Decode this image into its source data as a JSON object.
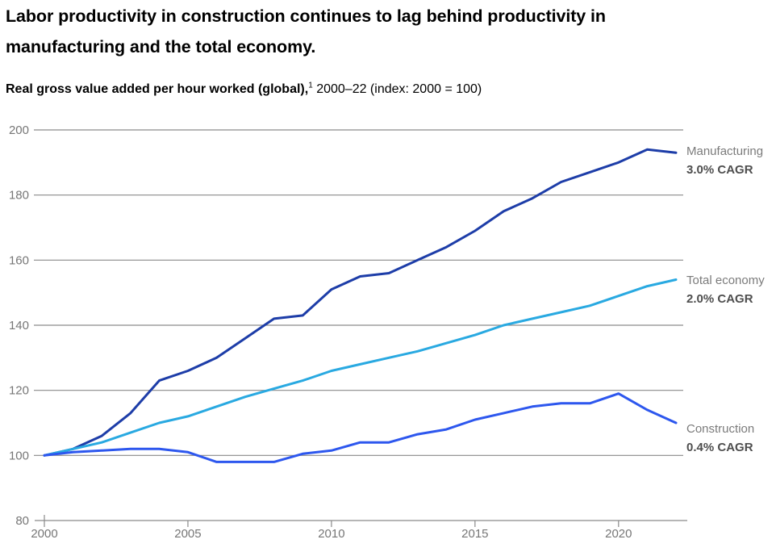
{
  "header": {
    "title_line1": "Labor productivity in construction continues to lag behind productivity in",
    "title_line2": "manufacturing and the total economy.",
    "subtitle_bold": "Real gross value added per hour worked (global),",
    "subtitle_superscript": "1",
    "subtitle_rest": " 2000–22 (index: 2000 = 100)"
  },
  "chart_data": {
    "type": "line",
    "title": "Labor productivity in construction continues to lag behind productivity in manufacturing and the total economy.",
    "subtitle": "Real gross value added per hour worked (global), 2000–22 (index: 2000 = 100)",
    "xlabel": "",
    "ylabel": "",
    "x_range": [
      2000,
      2022
    ],
    "y_range": [
      80,
      200
    ],
    "x_ticks": [
      2000,
      2005,
      2010,
      2015,
      2020
    ],
    "y_ticks": [
      200,
      180,
      160,
      140,
      120,
      100,
      80
    ],
    "y_tick_interval": 20,
    "grid": "horizontal-only",
    "legend_position": "right-of-line-ends",
    "x": [
      2000,
      2001,
      2002,
      2003,
      2004,
      2005,
      2006,
      2007,
      2008,
      2009,
      2010,
      2011,
      2012,
      2013,
      2014,
      2015,
      2016,
      2017,
      2018,
      2019,
      2020,
      2021,
      2022
    ],
    "series": [
      {
        "name": "Manufacturing",
        "cagr": "3.0% CAGR",
        "color": "#1d3da8",
        "values": [
          100,
          102,
          106,
          113,
          123,
          126,
          130,
          136,
          142,
          143,
          151,
          155,
          156,
          160,
          164,
          169,
          175,
          179,
          184,
          187,
          190,
          194,
          193
        ]
      },
      {
        "name": "Total economy",
        "cagr": "2.0% CAGR",
        "color": "#29a9e1",
        "values": [
          100,
          102,
          104,
          107,
          110,
          112,
          115,
          118,
          120.5,
          123,
          126,
          128,
          130,
          132,
          134.5,
          137,
          140,
          142,
          144,
          146,
          149,
          152,
          154
        ]
      },
      {
        "name": "Construction",
        "cagr": "0.4% CAGR",
        "color": "#2d57ee",
        "values": [
          100,
          101,
          101.5,
          102,
          102,
          101,
          98,
          98,
          98,
          100.5,
          101.5,
          104,
          104,
          106.5,
          108,
          111,
          113,
          115,
          116,
          116,
          119,
          114,
          110
        ]
      }
    ],
    "style": {
      "grid_color": "#8a8a8a",
      "tick_label_color": "#767676",
      "line_width": 3
    }
  }
}
